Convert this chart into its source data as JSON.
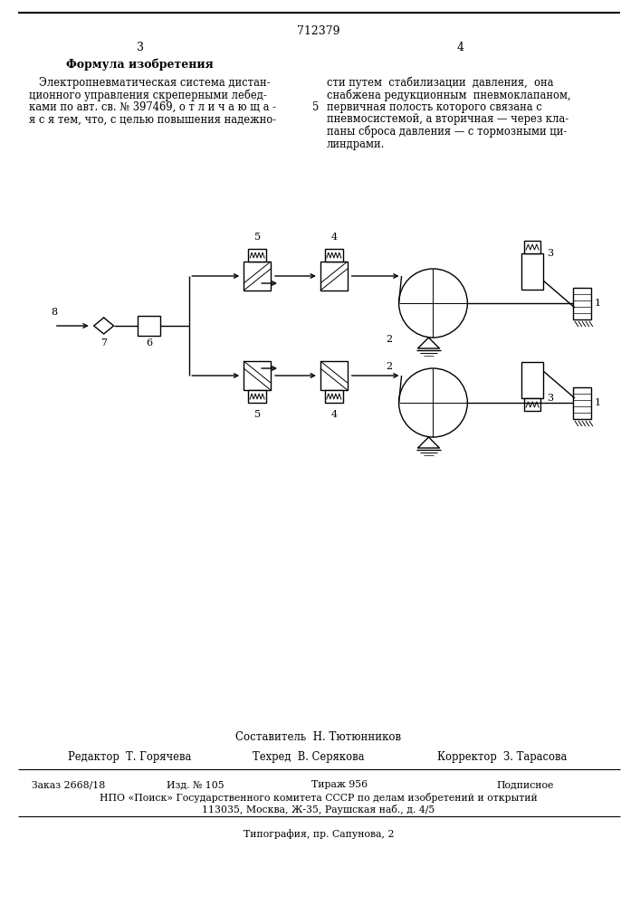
{
  "patent_number": "712379",
  "page_left": "3",
  "page_right": "4",
  "section_title": "Формула изобретения",
  "left_col_lines": [
    "   Электропневматическая система дистан-",
    "ционного управления скреперными лебед-",
    "ками по авт. св. № 397469, о т л и ч а ю щ а -",
    "я с я тем, что, с целью повышения надежно-"
  ],
  "right_col_lines": [
    "сти путем  стабилизации  давления,  она",
    "снабжена редукционным  пневмоклапаном,",
    "первичная полость которого связана с",
    "пневмосистемой, а вторичная — через кла-",
    "паны сброса давления — с тормозными ци-",
    "линдрами."
  ],
  "mid_number": "5",
  "composer_label": "Составитель  Н. Тютюнников",
  "editor_label": "Редактор  Т. Горячева",
  "tech_label": "Техред  В. Серякова",
  "corrector_label": "Корректор  З. Тарасова",
  "order_label": "Заказ 2668/18",
  "izd_label": "Изд. № 105",
  "tirazh_label": "Тираж 956",
  "podpisnoe_label": "Подписное",
  "npo_label": "НПО «Поиск» Государственного комитета СССР по делам изобретений и открытий",
  "address_label": "113035, Москва, Ж-35, Раушская наб., д. 4/5",
  "tipography_label": "Типография, пр. Сапунова, 2",
  "bg_color": "#ffffff",
  "text_color": "#000000"
}
